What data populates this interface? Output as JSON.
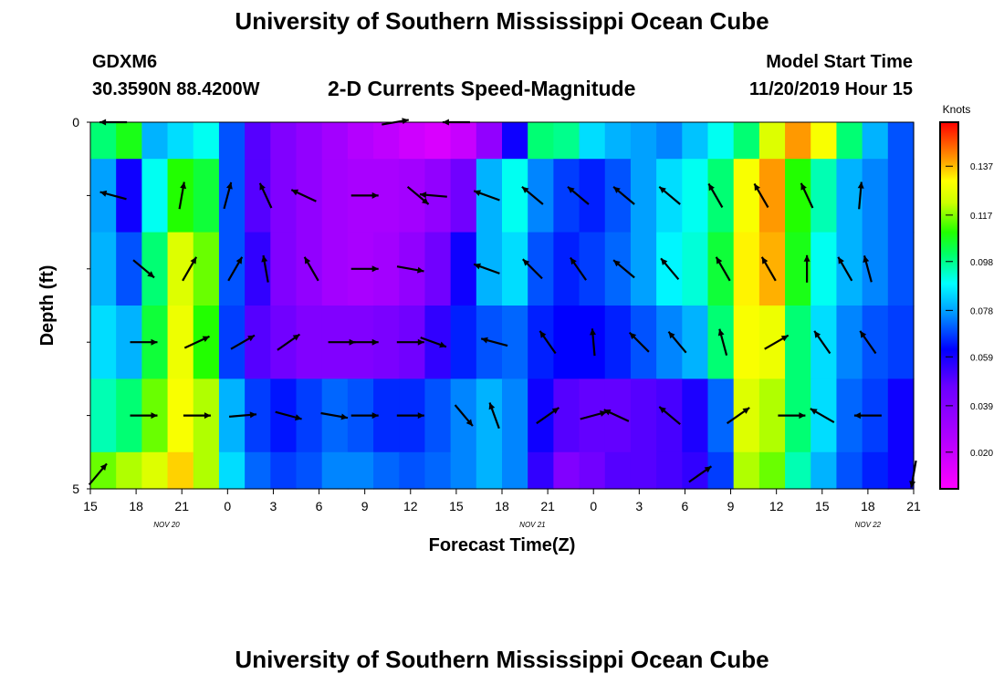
{
  "title": "University of Southern Mississippi Ocean Cube",
  "footer_title": "University of Southern Mississippi Ocean Cube",
  "station": "GDXM6",
  "coordinates": "30.3590N 88.4200W",
  "model_start_label": "Model Start Time",
  "model_start_value": "11/20/2019 Hour 15",
  "chart_data": {
    "type": "heatmap",
    "title": "2-D Currents Speed-Magnitude",
    "xlabel": "Forecast Time(Z)",
    "ylabel": "Depth (ft)",
    "x_tick_labels": [
      "15",
      "18",
      "21",
      "0",
      "3",
      "6",
      "9",
      "12",
      "15",
      "18",
      "21",
      "0",
      "3",
      "6",
      "9",
      "12",
      "15",
      "18",
      "21"
    ],
    "x_date_labels": [
      {
        "label": "NOV 20",
        "hour_offset": 5
      },
      {
        "label": "NOV 21",
        "hour_offset": 29
      },
      {
        "label": "NOV 22",
        "hour_offset": 51
      }
    ],
    "xlim_hours": [
      0,
      54
    ],
    "y_tick_labels": [
      {
        "value": 0,
        "label": "0"
      },
      {
        "value": 5,
        "label": "5"
      }
    ],
    "ylim": [
      0,
      5
    ],
    "colorbar": {
      "unit_label": "Knots",
      "ticks": [
        "0.137",
        "0.117",
        "0.098",
        "0.078",
        "0.059",
        "0.039",
        "0.020"
      ],
      "range": [
        0.005,
        0.155
      ]
    },
    "grid": false,
    "depth_layers": [
      0,
      1,
      2,
      3,
      4,
      5
    ],
    "speed_rows": [
      [
        0.1,
        0.108,
        0.08,
        0.085,
        0.09,
        0.07,
        0.05,
        0.04,
        0.035,
        0.03,
        0.025,
        0.022,
        0.018,
        0.015,
        0.02,
        0.035,
        0.06,
        0.1,
        0.098,
        0.085,
        0.08,
        0.078,
        0.075,
        0.082,
        0.09,
        0.1,
        0.125,
        0.14,
        0.13,
        0.1,
        0.08,
        0.07
      ],
      [
        0.078,
        0.06,
        0.09,
        0.11,
        0.105,
        0.07,
        0.05,
        0.04,
        0.035,
        0.03,
        0.028,
        0.028,
        0.03,
        0.035,
        0.045,
        0.08,
        0.09,
        0.075,
        0.068,
        0.065,
        0.07,
        0.078,
        0.085,
        0.09,
        0.1,
        0.13,
        0.14,
        0.11,
        0.095,
        0.08,
        0.075,
        0.07
      ],
      [
        0.08,
        0.07,
        0.1,
        0.125,
        0.115,
        0.07,
        0.055,
        0.04,
        0.035,
        0.03,
        0.028,
        0.03,
        0.035,
        0.045,
        0.06,
        0.08,
        0.085,
        0.07,
        0.065,
        0.068,
        0.072,
        0.078,
        0.088,
        0.092,
        0.105,
        0.132,
        0.138,
        0.108,
        0.09,
        0.08,
        0.075,
        0.07
      ],
      [
        0.085,
        0.08,
        0.105,
        0.128,
        0.11,
        0.068,
        0.05,
        0.045,
        0.04,
        0.04,
        0.04,
        0.042,
        0.045,
        0.055,
        0.065,
        0.07,
        0.072,
        0.065,
        0.062,
        0.062,
        0.065,
        0.07,
        0.075,
        0.08,
        0.1,
        0.13,
        0.128,
        0.1,
        0.085,
        0.075,
        0.07,
        0.068
      ],
      [
        0.095,
        0.1,
        0.115,
        0.13,
        0.12,
        0.08,
        0.068,
        0.064,
        0.068,
        0.072,
        0.07,
        0.066,
        0.066,
        0.07,
        0.075,
        0.08,
        0.075,
        0.06,
        0.05,
        0.048,
        0.048,
        0.05,
        0.052,
        0.058,
        0.072,
        0.125,
        0.12,
        0.1,
        0.085,
        0.072,
        0.068,
        0.06
      ],
      [
        0.115,
        0.12,
        0.125,
        0.135,
        0.12,
        0.085,
        0.072,
        0.068,
        0.07,
        0.075,
        0.075,
        0.072,
        0.07,
        0.072,
        0.075,
        0.08,
        0.075,
        0.055,
        0.04,
        0.045,
        0.05,
        0.05,
        0.052,
        0.055,
        0.068,
        0.12,
        0.115,
        0.095,
        0.08,
        0.07,
        0.065,
        0.06
      ]
    ],
    "vectors": [
      {
        "h": 1.5,
        "d": 0,
        "a": 180
      },
      {
        "h": 20,
        "d": 0,
        "a": 10
      },
      {
        "h": 24,
        "d": 0,
        "a": 180
      },
      {
        "h": 1.5,
        "d": 1,
        "a": 165
      },
      {
        "h": 6,
        "d": 1,
        "a": 80
      },
      {
        "h": 9,
        "d": 1,
        "a": 75
      },
      {
        "h": 11.5,
        "d": 1,
        "a": 115
      },
      {
        "h": 14,
        "d": 1,
        "a": 155
      },
      {
        "h": 18,
        "d": 1,
        "a": 0
      },
      {
        "h": 21.5,
        "d": 1,
        "a": -40
      },
      {
        "h": 22.5,
        "d": 1,
        "a": 175
      },
      {
        "h": 26,
        "d": 1,
        "a": 160
      },
      {
        "h": 29,
        "d": 1,
        "a": 140
      },
      {
        "h": 32,
        "d": 1,
        "a": 140
      },
      {
        "h": 35,
        "d": 1,
        "a": 140
      },
      {
        "h": 38,
        "d": 1,
        "a": 140
      },
      {
        "h": 41,
        "d": 1,
        "a": 120
      },
      {
        "h": 44,
        "d": 1,
        "a": 120
      },
      {
        "h": 47,
        "d": 1,
        "a": 115
      },
      {
        "h": 50.5,
        "d": 1,
        "a": 85
      },
      {
        "h": 3.5,
        "d": 2,
        "a": -40
      },
      {
        "h": 6.5,
        "d": 2,
        "a": 60
      },
      {
        "h": 9.5,
        "d": 2,
        "a": 60
      },
      {
        "h": 11.5,
        "d": 2,
        "a": 100
      },
      {
        "h": 14.5,
        "d": 2,
        "a": 120
      },
      {
        "h": 18,
        "d": 2,
        "a": 0
      },
      {
        "h": 21,
        "d": 2,
        "a": -10
      },
      {
        "h": 26,
        "d": 2,
        "a": 160
      },
      {
        "h": 29,
        "d": 2,
        "a": 135
      },
      {
        "h": 32,
        "d": 2,
        "a": 125
      },
      {
        "h": 35,
        "d": 2,
        "a": 140
      },
      {
        "h": 38,
        "d": 2,
        "a": 130
      },
      {
        "h": 41.5,
        "d": 2,
        "a": 120
      },
      {
        "h": 44.5,
        "d": 2,
        "a": 120
      },
      {
        "h": 47,
        "d": 2,
        "a": 90
      },
      {
        "h": 49.5,
        "d": 2,
        "a": 120
      },
      {
        "h": 51,
        "d": 2,
        "a": 105
      },
      {
        "h": 3.5,
        "d": 3,
        "a": 0
      },
      {
        "h": 7,
        "d": 3,
        "a": 25
      },
      {
        "h": 10,
        "d": 3,
        "a": 30
      },
      {
        "h": 13,
        "d": 3,
        "a": 35
      },
      {
        "h": 16.5,
        "d": 3,
        "a": 0
      },
      {
        "h": 18,
        "d": 3,
        "a": 0
      },
      {
        "h": 21,
        "d": 3,
        "a": 0
      },
      {
        "h": 22.5,
        "d": 3,
        "a": -20
      },
      {
        "h": 26.5,
        "d": 3,
        "a": 165
      },
      {
        "h": 30,
        "d": 3,
        "a": 125
      },
      {
        "h": 33,
        "d": 3,
        "a": 95
      },
      {
        "h": 36,
        "d": 3,
        "a": 135
      },
      {
        "h": 38.5,
        "d": 3,
        "a": 130
      },
      {
        "h": 41.5,
        "d": 3,
        "a": 105
      },
      {
        "h": 45,
        "d": 3,
        "a": 30
      },
      {
        "h": 48,
        "d": 3,
        "a": 125
      },
      {
        "h": 51,
        "d": 3,
        "a": 125
      },
      {
        "h": 3.5,
        "d": 4,
        "a": 0
      },
      {
        "h": 7,
        "d": 4,
        "a": 0
      },
      {
        "h": 10,
        "d": 4,
        "a": 5
      },
      {
        "h": 13,
        "d": 4,
        "a": -15
      },
      {
        "h": 16,
        "d": 4,
        "a": -10
      },
      {
        "h": 18,
        "d": 4,
        "a": 0
      },
      {
        "h": 21,
        "d": 4,
        "a": 0
      },
      {
        "h": 24.5,
        "d": 4,
        "a": -50
      },
      {
        "h": 26.5,
        "d": 4,
        "a": 110
      },
      {
        "h": 30,
        "d": 4,
        "a": 35
      },
      {
        "h": 33,
        "d": 4,
        "a": 15
      },
      {
        "h": 34.5,
        "d": 4,
        "a": 155
      },
      {
        "h": 38,
        "d": 4,
        "a": 140
      },
      {
        "h": 42.5,
        "d": 4,
        "a": 35
      },
      {
        "h": 46,
        "d": 4,
        "a": 0
      },
      {
        "h": 48,
        "d": 4,
        "a": 150
      },
      {
        "h": 51,
        "d": 4,
        "a": 180
      },
      {
        "h": 0.5,
        "d": 4.8,
        "a": 50
      },
      {
        "h": 40,
        "d": 4.8,
        "a": 35
      },
      {
        "h": 54,
        "d": 4.8,
        "a": -100
      }
    ]
  }
}
